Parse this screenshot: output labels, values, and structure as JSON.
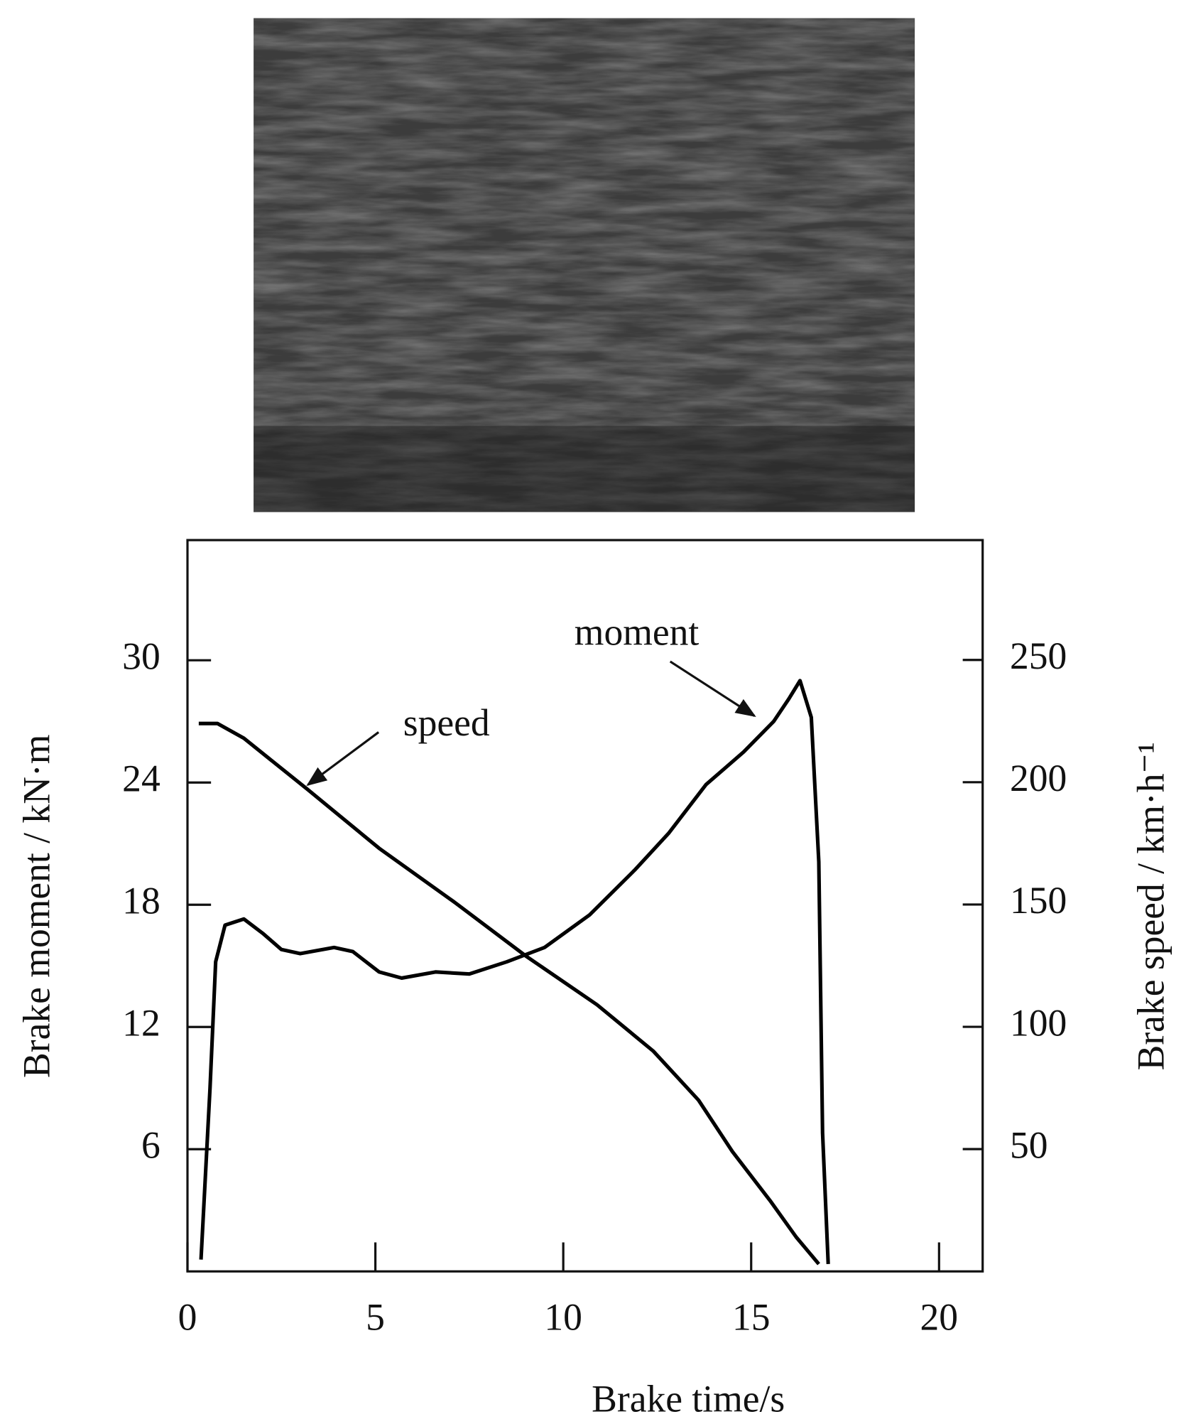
{
  "chart_data": {
    "type": "line",
    "x_label": "Brake time/s",
    "y_label": "Brake moment / kN·m",
    "y2_label": "Brake speed / km·h⁻¹",
    "xlim": [
      0,
      21.16
    ],
    "xticks": [
      0,
      5,
      10,
      15,
      20
    ],
    "ylim": [
      0,
      35.9
    ],
    "yticks": [
      6,
      12,
      18,
      24,
      30
    ],
    "y2lim": [
      0,
      299
    ],
    "y2ticks": [
      50,
      100,
      150,
      200,
      250
    ],
    "annotations": [
      "moment",
      "speed"
    ],
    "series": [
      {
        "name": "moment",
        "color": "#000000",
        "x": [
          0.36,
          0.6,
          0.75,
          1.0,
          1.5,
          2.0,
          2.5,
          3.0,
          3.9,
          4.4,
          5.1,
          5.7,
          6.6,
          7.5,
          8.5,
          9.5,
          10.7,
          11.9,
          12.8,
          13.8,
          14.8,
          15.6,
          16.0,
          16.3,
          16.6,
          16.8,
          16.9,
          17.05
        ],
        "values": [
          0.58,
          9.0,
          15.2,
          17.0,
          17.3,
          16.6,
          15.8,
          15.6,
          15.9,
          15.7,
          14.7,
          14.4,
          14.7,
          14.6,
          15.2,
          15.9,
          17.5,
          19.7,
          21.5,
          23.9,
          25.5,
          27.0,
          28.1,
          29.0,
          27.2,
          20.1,
          6.8,
          0.36
        ]
      },
      {
        "name": "speed",
        "color": "#000000",
        "axis": "y2",
        "x": [
          0.3,
          0.8,
          1.5,
          3.2,
          5.1,
          7.1,
          9.0,
          10.9,
          12.4,
          13.6,
          14.5,
          15.5,
          16.2,
          16.8
        ],
        "values": [
          224,
          224,
          218,
          197,
          173,
          151,
          129,
          109,
          90,
          70,
          49,
          29,
          14,
          3
        ]
      }
    ]
  }
}
